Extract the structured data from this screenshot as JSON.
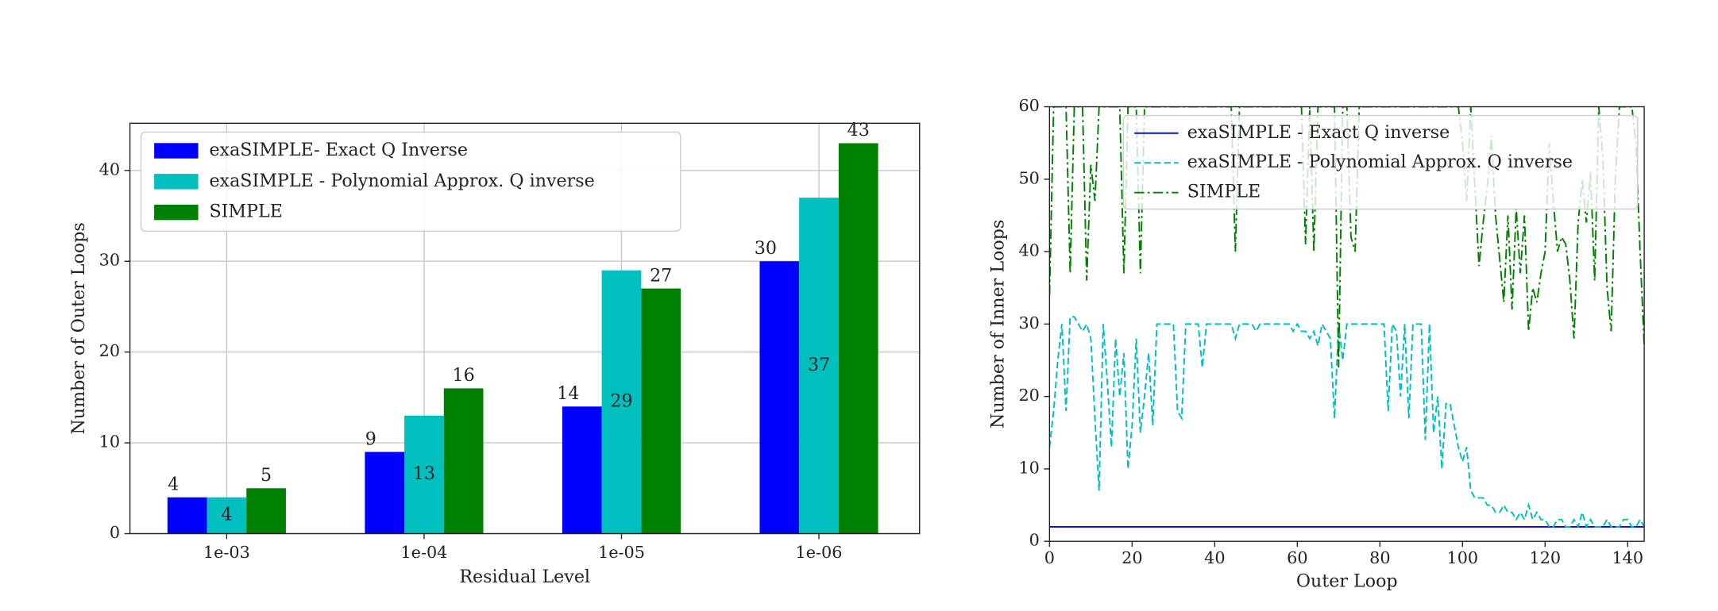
{
  "chart_data": [
    {
      "type": "bar",
      "xlabel": "Residual Level",
      "ylabel": "Number of Outer Loops",
      "categories": [
        "1e-03",
        "1e-04",
        "1e-05",
        "1e-06"
      ],
      "series": [
        {
          "name": "exaSIMPLE- Exact Q Inverse",
          "color": "#0000ff",
          "values": [
            4,
            9,
            14,
            30
          ]
        },
        {
          "name": "exaSIMPLE - Polynomial Approx. Q inverse",
          "color": "#00bfbf",
          "values": [
            4,
            13,
            29,
            37
          ]
        },
        {
          "name": "SIMPLE",
          "color": "#008000",
          "values": [
            5,
            16,
            27,
            43
          ]
        }
      ],
      "ylim": [
        0,
        45.2
      ],
      "yticks": [
        0,
        10,
        20,
        30,
        40
      ],
      "grid": true,
      "legend": "upper left"
    },
    {
      "type": "line",
      "xlabel": "Outer Loop",
      "ylabel": "Number of Inner Loops",
      "x": [
        0,
        1,
        2,
        3,
        4,
        5,
        6,
        7,
        8,
        9,
        10,
        11,
        12,
        13,
        14,
        15,
        16,
        17,
        18,
        19,
        20,
        21,
        22,
        23,
        24,
        25,
        26,
        27,
        28,
        29,
        30,
        31,
        32,
        33,
        34,
        35,
        36,
        37,
        38,
        39,
        40,
        41,
        42,
        43,
        44,
        45,
        46,
        47,
        48,
        49,
        50,
        51,
        52,
        53,
        54,
        55,
        56,
        57,
        58,
        59,
        60,
        61,
        62,
        63,
        64,
        65,
        66,
        67,
        68,
        69,
        70,
        71,
        72,
        73,
        74,
        75,
        76,
        77,
        78,
        79,
        80,
        81,
        82,
        83,
        84,
        85,
        86,
        87,
        88,
        89,
        90,
        91,
        92,
        93,
        94,
        95,
        96,
        97,
        98,
        99,
        100,
        101,
        102,
        103,
        104,
        105,
        106,
        107,
        108,
        109,
        110,
        111,
        112,
        113,
        114,
        115,
        116,
        117,
        118,
        119,
        120,
        121,
        122,
        123,
        124,
        125,
        126,
        127,
        128,
        129,
        130,
        131,
        132,
        133,
        134,
        135,
        136,
        137,
        138,
        139,
        140,
        141,
        142,
        143,
        144
      ],
      "series": [
        {
          "name": "exaSIMPLE - Exact Q inverse",
          "color": "#0000ff",
          "linestyle": "solid",
          "values": [
            2,
            2,
            2,
            2,
            2,
            2,
            2,
            2,
            2,
            2,
            2,
            2,
            2,
            2,
            2,
            2,
            2,
            2,
            2,
            2,
            2,
            2,
            2,
            2,
            2,
            2,
            2,
            2,
            2,
            2,
            2,
            2,
            2,
            2,
            2,
            2,
            2,
            2,
            2,
            2,
            2,
            2,
            2,
            2,
            2,
            2,
            2,
            2,
            2,
            2,
            2,
            2,
            2,
            2,
            2,
            2,
            2,
            2,
            2,
            2,
            2,
            2,
            2,
            2,
            2,
            2,
            2,
            2,
            2,
            2,
            2,
            2,
            2,
            2,
            2,
            2,
            2,
            2,
            2,
            2,
            2,
            2,
            2,
            2,
            2,
            2,
            2,
            2,
            2,
            2,
            2,
            2,
            2,
            2,
            2,
            2,
            2,
            2,
            2,
            2,
            2,
            2,
            2,
            2,
            2,
            2,
            2,
            2,
            2,
            2,
            2,
            2,
            2,
            2,
            2,
            2,
            2,
            2,
            2,
            2,
            2,
            2,
            2,
            2,
            2,
            2,
            2,
            2,
            2,
            2,
            2,
            2,
            2,
            2,
            2,
            2,
            2,
            2,
            2,
            2,
            2,
            2,
            2,
            2,
            2
          ]
        },
        {
          "name": "exaSIMPLE - Polynomial Approx. Q inverse",
          "color": "#00bfbf",
          "linestyle": "dashed",
          "values": [
            13,
            18,
            25,
            30,
            18,
            31,
            31,
            30,
            29,
            30,
            28,
            17,
            7,
            30,
            22,
            13,
            28,
            20,
            26,
            10,
            16,
            28,
            15,
            20,
            26,
            16,
            30,
            30,
            30,
            30,
            30,
            18,
            17,
            30,
            30,
            30,
            30,
            24,
            30,
            30,
            30,
            30,
            30,
            30,
            30,
            28,
            30,
            30,
            30,
            30,
            29,
            30,
            30,
            30,
            30,
            30,
            30,
            30,
            30,
            29,
            30,
            29,
            29,
            28,
            29,
            27,
            30,
            29,
            28,
            17,
            30,
            25,
            30,
            30,
            30,
            30,
            30,
            30,
            30,
            30,
            30,
            30,
            18,
            30,
            29,
            20,
            30,
            17,
            30,
            30,
            30,
            14,
            30,
            15,
            20,
            10,
            19,
            19,
            16,
            13,
            11,
            13,
            7,
            6,
            6,
            6,
            5,
            5,
            4,
            4,
            5,
            4,
            4,
            3,
            4,
            3,
            5,
            3,
            4,
            3,
            3,
            2,
            2,
            3,
            3,
            2,
            2,
            3,
            2,
            4,
            2,
            3,
            2,
            2,
            2,
            3,
            2,
            2,
            2,
            3,
            3,
            2,
            2,
            3,
            2
          ]
        },
        {
          "name": "SIMPLE",
          "color": "#008000",
          "linestyle": "dashdot",
          "values": [
            34,
            60,
            60,
            60,
            60,
            37,
            60,
            60,
            60,
            36,
            52,
            47,
            60,
            60,
            60,
            60,
            60,
            60,
            37,
            60,
            60,
            60,
            37,
            60,
            60,
            60,
            60,
            60,
            60,
            60,
            60,
            60,
            60,
            60,
            60,
            60,
            60,
            60,
            60,
            60,
            60,
            60,
            60,
            60,
            60,
            40,
            60,
            60,
            60,
            60,
            60,
            60,
            60,
            60,
            60,
            60,
            60,
            60,
            60,
            60,
            60,
            60,
            41,
            60,
            40,
            60,
            60,
            60,
            60,
            60,
            24,
            60,
            60,
            42,
            40,
            60,
            60,
            60,
            60,
            60,
            60,
            60,
            60,
            60,
            60,
            60,
            60,
            60,
            60,
            60,
            60,
            60,
            60,
            60,
            60,
            60,
            60,
            60,
            60,
            60,
            55,
            47,
            60,
            49,
            38,
            44,
            49,
            56,
            45,
            39,
            33,
            45,
            32,
            46,
            37,
            45,
            29,
            35,
            33,
            37,
            40,
            55,
            47,
            40,
            42,
            41,
            36,
            28,
            44,
            50,
            44,
            51,
            36,
            60,
            53,
            35,
            29,
            50,
            60,
            60,
            60,
            60,
            55,
            40,
            27
          ]
        }
      ],
      "xlim": [
        0,
        144
      ],
      "ylim": [
        0,
        60
      ],
      "xticks": [
        0,
        20,
        40,
        60,
        80,
        100,
        120,
        140
      ],
      "yticks": [
        0,
        10,
        20,
        30,
        40,
        50,
        60
      ],
      "grid": false,
      "legend": "upper right"
    }
  ]
}
